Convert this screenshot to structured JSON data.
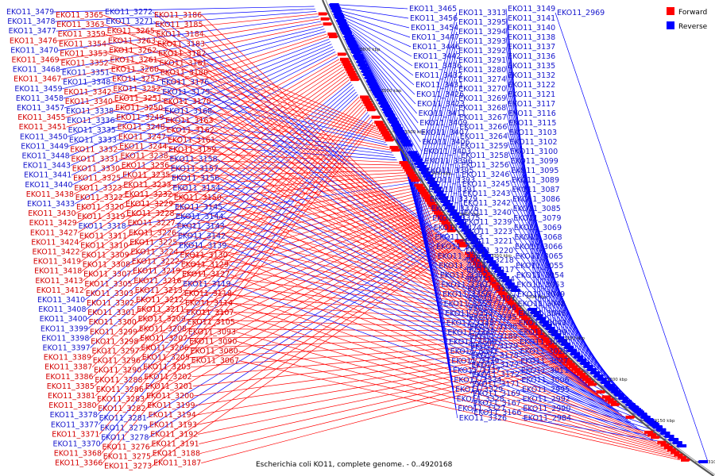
{
  "caption": "Escherichia coli KO11, complete genome. - 0..4920168",
  "legend": {
    "forward_label": "Forward",
    "reverse_label": "Reverse",
    "forward_color": "#ff0000",
    "reverse_color": "#0000ff"
  },
  "scale_ticks": [
    "3600 kbp",
    "3550 kbp",
    "3500 kbp",
    "3450 kbp",
    "3400 kbp",
    "3350 kbp",
    "3300 kbp",
    "3250 kbp",
    "3200 kbp",
    "3150 kbp",
    "3100 kbp"
  ],
  "forward_genes": [
    "EKO11_3476",
    "EKO11_3469",
    "EKO11_3467",
    "EKO11_3455",
    "EKO11_3451",
    "EKO11_3438",
    "EKO11_3430",
    "EKO11_3429",
    "EKO11_3427",
    "EKO11_3424",
    "EKO11_3422",
    "EKO11_3419",
    "EKO11_3418",
    "EKO11_3413",
    "EKO11_3412",
    "EKO11_3389",
    "EKO11_3387",
    "EKO11_3386",
    "EKO11_3385",
    "EKO11_3381",
    "EKO11_3380",
    "EKO11_3371",
    "EKO11_3368",
    "EKO11_3366",
    "EKO11_3365",
    "EKO11_3363",
    "EKO11_3359",
    "EKO11_3354",
    "EKO11_3353",
    "EKO11_3352",
    "EKO11_3342",
    "EKO11_3340",
    "EKO11_3332",
    "EKO11_3331",
    "EKO11_3330",
    "EKO11_3325",
    "EKO11_3323",
    "EKO11_3322",
    "EKO11_3320",
    "EKO11_3319",
    "EKO11_3311",
    "EKO11_3310",
    "EKO11_3309",
    "EKO11_3308",
    "EKO11_3307",
    "EKO11_3305",
    "EKO11_3303",
    "EKO11_3302",
    "EKO11_3301",
    "EKO11_3300",
    "EKO11_3299",
    "EKO11_3298",
    "EKO11_3297",
    "EKO11_3296",
    "EKO11_3290",
    "EKO11_3288",
    "EKO11_3286",
    "EKO11_3283",
    "EKO11_3282",
    "EKO11_3276",
    "EKO11_3275",
    "EKO11_3273",
    "EKO11_3265",
    "EKO11_3263",
    "EKO11_3262",
    "EKO11_3261",
    "EKO11_3260",
    "EKO11_3257",
    "EKO11_3252",
    "EKO11_3251",
    "EKO11_3250",
    "EKO11_3249",
    "EKO11_3248",
    "EKO11_3247",
    "EKO11_3244",
    "EKO11_3238",
    "EKO11_3236",
    "EKO11_3235",
    "EKO11_3233",
    "EKO11_3232",
    "EKO11_3229",
    "EKO11_3228",
    "EKO11_3227",
    "EKO11_3226",
    "EKO11_3225",
    "EKO11_3224",
    "EKO11_3222",
    "EKO11_3219",
    "EKO11_3216",
    "EKO11_3213",
    "EKO11_3212",
    "EKO11_3211",
    "EKO11_3209",
    "EKO11_3208",
    "EKO11_3207",
    "EKO11_3206",
    "EKO11_3205",
    "EKO11_3203",
    "EKO11_3202",
    "EKO11_3201",
    "EKO11_3200",
    "EKO11_3199",
    "EKO11_3194",
    "EKO11_3193",
    "EKO11_3192",
    "EKO11_3191",
    "EKO11_3188",
    "EKO11_3187",
    "EKO11_3186",
    "EKO11_3185",
    "EKO11_3184",
    "EKO11_3183",
    "EKO11_3182",
    "EKO11_3181",
    "EKO11_3180",
    "EKO11_3170",
    "EKO11_3163",
    "EKO11_3162",
    "EKO11_3161",
    "EKO11_3159",
    "EKO11_3150",
    "EKO11_3130",
    "EKO11_3129",
    "EKO11_3127",
    "EKO11_3118",
    "EKO11_3114",
    "EKO11_3107",
    "EKO11_3105",
    "EKO11_3093",
    "EKO11_3090",
    "EKO11_3080",
    "EKO11_3067"
  ],
  "reverse_genes": [
    "EKO11_3479",
    "EKO11_3478",
    "EKO11_3477",
    "EKO11_3470",
    "EKO11_3468",
    "EKO11_3459",
    "EKO11_3458",
    "EKO11_3457",
    "EKO11_3450",
    "EKO11_3449",
    "EKO11_3448",
    "EKO11_3443",
    "EKO11_3441",
    "EKO11_3440",
    "EKO11_3433",
    "EKO11_3410",
    "EKO11_3408",
    "EKO11_3400",
    "EKO11_3399",
    "EKO11_3398",
    "EKO11_3397",
    "EKO11_3378",
    "EKO11_3377",
    "EKO11_3370",
    "EKO11_3351",
    "EKO11_3348",
    "EKO11_3338",
    "EKO11_3336",
    "EKO11_3335",
    "EKO11_3333",
    "EKO11_3318",
    "EKO11_3281",
    "EKO11_3279",
    "EKO11_3278",
    "EKO11_3272",
    "EKO11_3271",
    "EKO11_3176",
    "EKO11_3175",
    "EKO11_3168",
    "EKO11_3158",
    "EKO11_3157",
    "EKO11_3156",
    "EKO11_3154",
    "EKO11_3145",
    "EKO11_3144",
    "EKO11_3143",
    "EKO11_3142",
    "EKO11_3139",
    "EKO11_3119",
    "EKO11_3465",
    "EKO11_3456",
    "EKO11_3454",
    "EKO11_3447",
    "EKO11_3446",
    "EKO11_3442",
    "EKO11_3436",
    "EKO11_3432",
    "EKO11_3431",
    "EKO11_3426",
    "EKO11_3423",
    "EKO11_3411",
    "EKO11_3409",
    "EKO11_3407",
    "EKO11_3406",
    "EKO11_3403",
    "EKO11_3396",
    "EKO11_3395",
    "EKO11_3393",
    "EKO11_3391",
    "EKO11_3379",
    "EKO11_3376",
    "EKO11_3375",
    "EKO11_3374",
    "EKO11_3373",
    "EKO11_3372",
    "EKO11_3367",
    "EKO11_3364",
    "EKO11_3362",
    "EKO11_3361",
    "EKO11_3356",
    "EKO11_3355",
    "EKO11_3350",
    "EKO11_3349",
    "EKO11_3347",
    "EKO11_3346",
    "EKO11_3341",
    "EKO11_3339",
    "EKO11_3337",
    "EKO11_3334",
    "EKO11_3329",
    "EKO11_3328",
    "EKO11_3327",
    "EKO11_3326",
    "EKO11_3321",
    "EKO11_3317",
    "EKO11_3316",
    "EKO11_3314",
    "EKO11_3313",
    "EKO11_3295",
    "EKO11_3294",
    "EKO11_3293",
    "EKO11_3292",
    "EKO11_3291",
    "EKO11_3280",
    "EKO11_3274",
    "EKO11_3270",
    "EKO11_3269",
    "EKO11_3268",
    "EKO11_3267",
    "EKO11_3266",
    "EKO11_3264",
    "EKO11_3259",
    "EKO11_3258",
    "EKO11_3256",
    "EKO11_3246",
    "EKO11_3245",
    "EKO11_3243",
    "EKO11_3242",
    "EKO11_3240",
    "EKO11_3239",
    "EKO11_3223",
    "EKO11_3221",
    "EKO11_3220",
    "EKO11_3218",
    "EKO11_3217",
    "EKO11_3204",
    "EKO11_3198",
    "EKO11_3197",
    "EKO11_3196",
    "EKO11_3195",
    "EKO11_3190",
    "EKO11_3189",
    "EKO11_3179",
    "EKO11_3178",
    "EKO11_3177",
    "EKO11_3172",
    "EKO11_3171",
    "EKO11_3169",
    "EKO11_3167",
    "EKO11_3166",
    "EKO11_3165",
    "EKO11_3155",
    "EKO11_3153",
    "EKO11_3152",
    "EKO11_3151",
    "EKO11_3149",
    "EKO11_3141",
    "EKO11_3140",
    "EKO11_3138",
    "EKO11_3137",
    "EKO11_3136",
    "EKO11_3135",
    "EKO11_3132",
    "EKO11_3122",
    "EKO11_3121",
    "EKO11_3117",
    "EKO11_3116",
    "EKO11_3115",
    "EKO11_3103",
    "EKO11_3102",
    "EKO11_3100",
    "EKO11_3099",
    "EKO11_3095",
    "EKO11_3089",
    "EKO11_3087",
    "EKO11_3086",
    "EKO11_3085",
    "EKO11_3079",
    "EKO11_3069",
    "EKO11_3068",
    "EKO11_3066",
    "EKO11_3065",
    "EKO11_3055",
    "EKO11_3054",
    "EKO11_3053",
    "EKO11_3049",
    "EKO11_3048",
    "EKO11_3046",
    "EKO11_3043",
    "EKO11_3039",
    "EKO11_3029",
    "EKO11_3028",
    "EKO11_3027",
    "EKO11_3011",
    "EKO11_3006",
    "EKO11_2995",
    "EKO11_2992",
    "EKO11_2990",
    "EKO11_2984",
    "EKO11_2983",
    "EKO11_2982",
    "EKO11_2979",
    "EKO11_2970",
    "EKO11_2969"
  ]
}
